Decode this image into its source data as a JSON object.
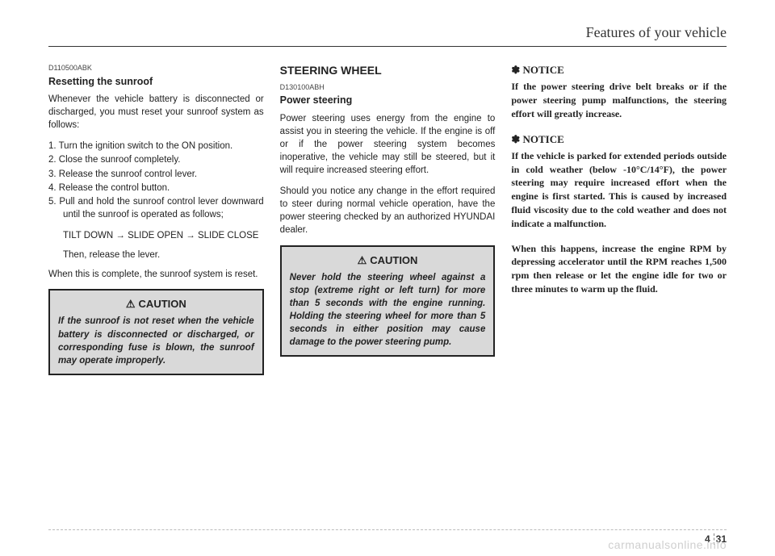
{
  "header": "Features of your vehicle",
  "col1": {
    "code": "D110500ABK",
    "heading": "Resetting the sunroof",
    "intro": "Whenever the vehicle battery is disconnected or discharged, you must reset your sunroof system as follows:",
    "steps": [
      "1.  Turn the ignition switch to the ON position.",
      "2.  Close the sunroof completely.",
      "3.  Release the sunroof control lever.",
      "4.  Release the control button.",
      "5.  Pull and hold the sunroof control lever downward until the sunroof is operated as follows;"
    ],
    "sequence": "TILT DOWN → SLIDE OPEN → SLIDE CLOSE",
    "then": "Then, release the lever.",
    "conclusion": "When this is complete, the sunroof system is reset.",
    "caution_title": "CAUTION",
    "caution_body": "If the sunroof is not reset when the vehicle battery is disconnected or discharged, or corresponding fuse is blown, the sunroof may operate improperly."
  },
  "col2": {
    "main_heading": "STEERING WHEEL",
    "code": "D130100ABH",
    "heading": "Power steering",
    "para1": "Power steering uses energy from the engine to assist you in steering the vehicle. If the engine is off or if the power steering system becomes inoperative, the vehicle may still be steered, but it will require increased steering effort.",
    "para2": "Should you notice any change in the effort required to steer during normal vehicle operation, have the power steering checked by an authorized HYUNDAI dealer.",
    "caution_title": "CAUTION",
    "caution_body": "Never hold the steering wheel against a stop (extreme right or left turn) for more than 5 seconds with the engine running. Holding the steering wheel for more than 5 seconds in either position may cause damage to the power steering pump."
  },
  "col3": {
    "notice1_title": "✽ NOTICE",
    "notice1_body": "If the power steering drive belt breaks or if the power steering pump malfunctions, the steering effort will greatly increase.",
    "notice2_title": "✽ NOTICE",
    "notice2_body1": "If the vehicle is parked for extended periods outside in cold weather (below -10°C/14°F), the power steering may require increased effort when the engine is first started. This is caused by increased fluid viscosity due to the cold weather and does not indicate a malfunction.",
    "notice2_body2": "When this happens, increase the engine RPM by depressing accelerator until the RPM reaches 1,500 rpm then release or let the engine idle for two or three minutes to warm up the fluid."
  },
  "footer": {
    "chapter": "4",
    "page": "31"
  },
  "watermark": "carmanualsonline.info"
}
